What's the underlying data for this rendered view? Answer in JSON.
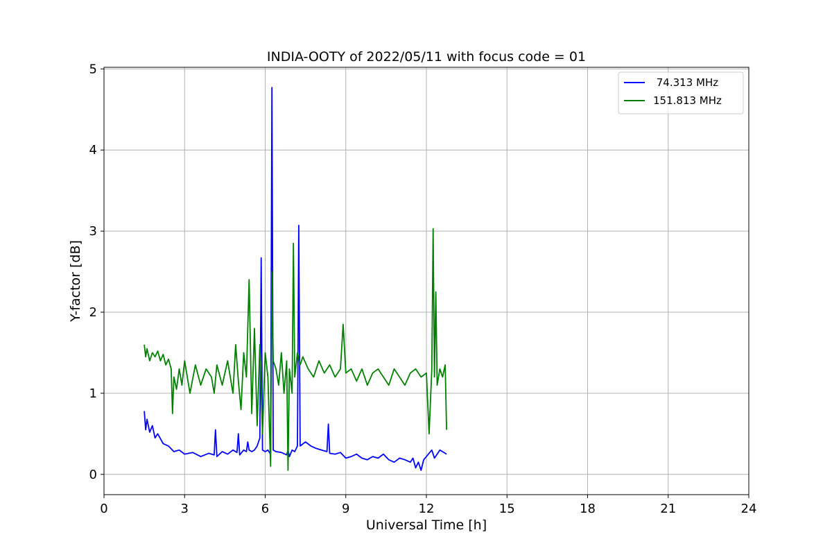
{
  "chart_data": {
    "type": "line",
    "title": "INDIA-OOTY of 2022/05/11 with focus code = 01",
    "xlabel": "Universal Time [h]",
    "ylabel": "Y-factor [dB]",
    "xlim": [
      0,
      24
    ],
    "ylim": [
      -0.25,
      5.02
    ],
    "xticks": [
      0,
      3,
      6,
      9,
      12,
      15,
      18,
      21,
      24
    ],
    "xtick_labels": [
      "0",
      "3",
      "6",
      "9",
      "12",
      "15",
      "18",
      "21",
      "24"
    ],
    "yticks": [
      0,
      1,
      2,
      3,
      4,
      5
    ],
    "ytick_labels": [
      "0",
      "1",
      "2",
      "3",
      "4",
      "5"
    ],
    "grid": true,
    "legend_position": "top-right",
    "series": [
      {
        "name": " 74.313 MHz",
        "color": "#0000ff",
        "x": [
          1.5,
          1.55,
          1.6,
          1.7,
          1.8,
          1.9,
          2.0,
          2.2,
          2.4,
          2.6,
          2.8,
          3.0,
          3.3,
          3.6,
          3.9,
          4.1,
          4.15,
          4.2,
          4.4,
          4.6,
          4.8,
          4.95,
          5.0,
          5.05,
          5.2,
          5.3,
          5.35,
          5.4,
          5.5,
          5.6,
          5.7,
          5.8,
          5.85,
          5.9,
          6.0,
          6.1,
          6.2,
          6.25,
          6.3,
          6.4,
          6.6,
          6.8,
          6.85,
          6.9,
          7.0,
          7.1,
          7.2,
          7.25,
          7.3,
          7.5,
          7.7,
          7.9,
          8.1,
          8.3,
          8.35,
          8.4,
          8.6,
          8.8,
          9.0,
          9.2,
          9.4,
          9.6,
          9.8,
          10.0,
          10.2,
          10.4,
          10.6,
          10.8,
          11.0,
          11.2,
          11.4,
          11.5,
          11.6,
          11.7,
          11.8,
          11.9,
          12.0,
          12.2,
          12.3,
          12.4,
          12.5,
          12.6,
          12.75
        ],
        "y": [
          0.78,
          0.55,
          0.68,
          0.52,
          0.6,
          0.45,
          0.5,
          0.38,
          0.35,
          0.28,
          0.3,
          0.25,
          0.27,
          0.22,
          0.26,
          0.24,
          0.55,
          0.22,
          0.28,
          0.25,
          0.3,
          0.27,
          0.5,
          0.24,
          0.3,
          0.28,
          0.4,
          0.3,
          0.28,
          0.3,
          0.35,
          0.45,
          2.67,
          0.3,
          0.28,
          0.3,
          0.25,
          4.77,
          0.3,
          0.28,
          0.27,
          0.24,
          0.3,
          0.22,
          0.3,
          0.28,
          0.35,
          3.07,
          0.35,
          0.4,
          0.35,
          0.32,
          0.3,
          0.28,
          0.62,
          0.26,
          0.25,
          0.27,
          0.2,
          0.22,
          0.25,
          0.2,
          0.18,
          0.22,
          0.2,
          0.25,
          0.18,
          0.15,
          0.2,
          0.18,
          0.15,
          0.2,
          0.08,
          0.15,
          0.05,
          0.18,
          0.22,
          0.3,
          0.2,
          0.25,
          0.3,
          0.28,
          0.25
        ]
      },
      {
        "name": "151.813 MHz",
        "color": "#008000",
        "x": [
          1.5,
          1.55,
          1.6,
          1.7,
          1.8,
          1.9,
          2.0,
          2.1,
          2.2,
          2.3,
          2.4,
          2.5,
          2.55,
          2.6,
          2.7,
          2.8,
          2.9,
          3.0,
          3.2,
          3.4,
          3.6,
          3.8,
          4.0,
          4.1,
          4.2,
          4.4,
          4.6,
          4.8,
          4.9,
          5.0,
          5.1,
          5.2,
          5.3,
          5.4,
          5.5,
          5.6,
          5.7,
          5.8,
          5.9,
          6.0,
          6.1,
          6.2,
          6.25,
          6.3,
          6.4,
          6.5,
          6.6,
          6.7,
          6.8,
          6.85,
          6.9,
          7.0,
          7.05,
          7.1,
          7.2,
          7.3,
          7.4,
          7.6,
          7.8,
          8.0,
          8.2,
          8.4,
          8.6,
          8.8,
          8.9,
          9.0,
          9.2,
          9.4,
          9.6,
          9.8,
          10.0,
          10.2,
          10.4,
          10.6,
          10.8,
          11.0,
          11.2,
          11.4,
          11.6,
          11.8,
          12.0,
          12.1,
          12.2,
          12.25,
          12.3,
          12.35,
          12.4,
          12.5,
          12.6,
          12.7,
          12.75
        ],
        "y": [
          1.6,
          1.45,
          1.55,
          1.4,
          1.5,
          1.45,
          1.52,
          1.4,
          1.48,
          1.35,
          1.42,
          1.3,
          0.75,
          1.2,
          1.05,
          1.3,
          1.1,
          1.4,
          1.0,
          1.35,
          1.1,
          1.3,
          1.2,
          1.0,
          1.35,
          1.1,
          1.4,
          1.0,
          1.6,
          1.15,
          0.8,
          1.5,
          1.2,
          2.4,
          0.75,
          1.8,
          0.6,
          1.6,
          0.5,
          1.5,
          1.2,
          0.1,
          2.5,
          1.4,
          1.3,
          1.1,
          1.5,
          1.0,
          1.4,
          0.05,
          1.3,
          1.0,
          2.85,
          1.2,
          1.5,
          1.35,
          1.45,
          1.3,
          1.2,
          1.4,
          1.25,
          1.35,
          1.2,
          1.3,
          1.85,
          1.25,
          1.3,
          1.15,
          1.3,
          1.1,
          1.25,
          1.3,
          1.2,
          1.1,
          1.3,
          1.2,
          1.1,
          1.25,
          1.3,
          1.2,
          1.25,
          0.5,
          1.3,
          3.03,
          1.2,
          2.25,
          1.1,
          1.3,
          1.2,
          1.35,
          0.55
        ]
      }
    ]
  }
}
